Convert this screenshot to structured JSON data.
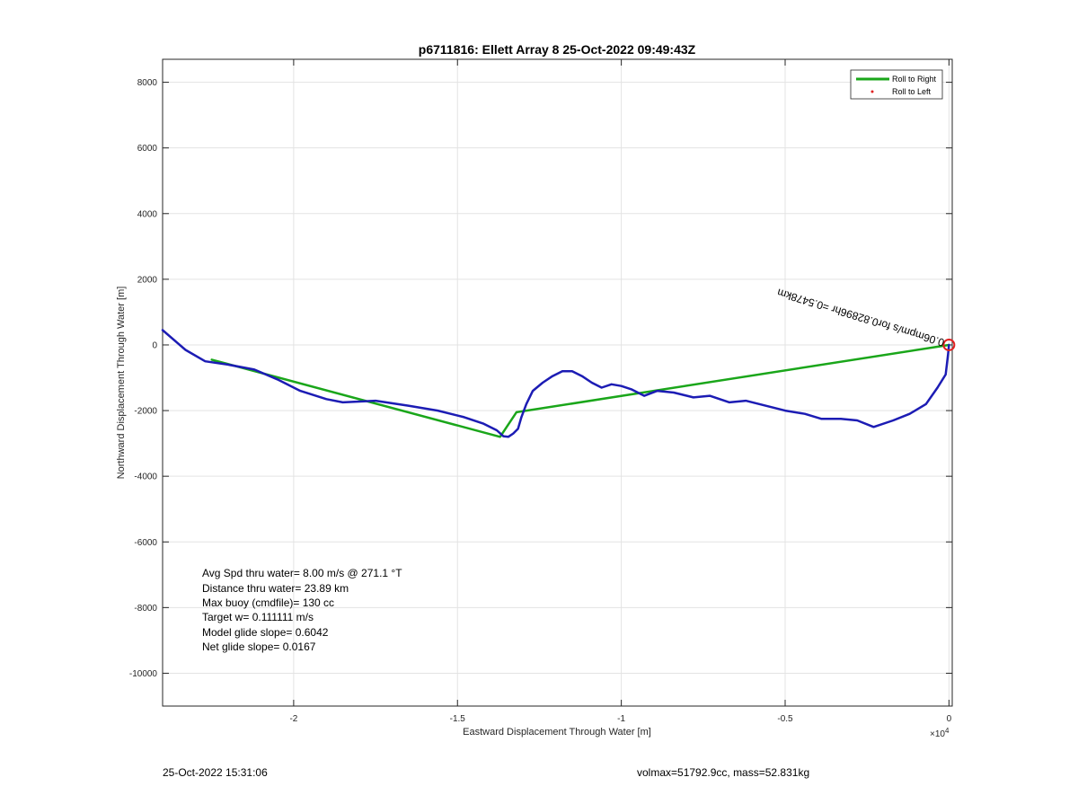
{
  "chart_data": {
    "type": "line",
    "title": "p6711816: Ellett Array 8 25-Oct-2022 09:49:43Z",
    "xlabel": "Eastward Displacement Through Water [m]",
    "ylabel": "Northward Displacement Through Water [m]",
    "x_exponent_label": "×10",
    "x_exponent_power": "4",
    "xlim": [
      -24000,
      100
    ],
    "ylim": [
      -11000,
      8700
    ],
    "x_ticks": [
      -20000,
      -15000,
      -10000,
      -5000,
      0
    ],
    "x_tick_labels": [
      "-2",
      "-1.5",
      "-1",
      "-0.5",
      "0"
    ],
    "y_ticks": [
      -10000,
      -8000,
      -6000,
      -4000,
      -2000,
      0,
      2000,
      4000,
      6000,
      8000
    ],
    "y_tick_labels": [
      "-10000",
      "-8000",
      "-6000",
      "-4000",
      "-2000",
      "0",
      "2000",
      "4000",
      "6000",
      "8000"
    ],
    "grid": true,
    "legend_position": "top-right",
    "series": [
      {
        "name": "Roll to Right",
        "color": "#1aa61a",
        "style": "line",
        "x": [
          0,
          -13200,
          -13700,
          -22500
        ],
        "y": [
          0,
          -2050,
          -2800,
          -450
        ]
      },
      {
        "name": "Roll to Left",
        "color": "#e02020",
        "style": "marker",
        "x": [],
        "y": []
      },
      {
        "name": "",
        "color": "#1c1cb4",
        "style": "line",
        "x": [
          0,
          -30,
          -100,
          -350,
          -700,
          -1200,
          -1700,
          -2300,
          -2800,
          -3300,
          -3900,
          -4400,
          -5000,
          -5600,
          -6200,
          -6700,
          -7300,
          -7800,
          -8400,
          -8900,
          -9300,
          -9700,
          -10000,
          -10300,
          -10600,
          -10900,
          -11200,
          -11500,
          -11800,
          -12100,
          -12400,
          -12700,
          -12900,
          -13050,
          -13150,
          -13300,
          -13450,
          -13600,
          -13800,
          -14200,
          -14800,
          -15600,
          -16500,
          -17500,
          -18500,
          -19000,
          -19800,
          -20500,
          -21200,
          -22000,
          -22700,
          -23300,
          -24000
        ],
        "y": [
          0,
          -300,
          -900,
          -1300,
          -1800,
          -2100,
          -2300,
          -2500,
          -2300,
          -2250,
          -2250,
          -2100,
          -2000,
          -1850,
          -1700,
          -1750,
          -1550,
          -1600,
          -1450,
          -1400,
          -1550,
          -1350,
          -1250,
          -1200,
          -1300,
          -1150,
          -950,
          -800,
          -800,
          -950,
          -1150,
          -1400,
          -1800,
          -2200,
          -2550,
          -2700,
          -2800,
          -2780,
          -2600,
          -2400,
          -2200,
          -2000,
          -1850,
          -1700,
          -1750,
          -1650,
          -1400,
          -1050,
          -750,
          -600,
          -500,
          -150,
          450
        ]
      }
    ],
    "direction_label": "0.06mpm/s for0.82896hr =0.5478km",
    "annotations": [
      "Avg Spd thru water=  8.00 m/s @ 271.1 °T",
      "Distance thru water= 23.89 km",
      "Max buoy (cmdfile)= 130 cc",
      "Target w= 0.111111 m/s",
      "Model glide slope= 0.6042",
      "Net glide slope= 0.0167"
    ]
  },
  "footer": {
    "timestamp": "25-Oct-2022 15:31:06",
    "info": "volmax=51792.9cc, mass=52.831kg"
  }
}
